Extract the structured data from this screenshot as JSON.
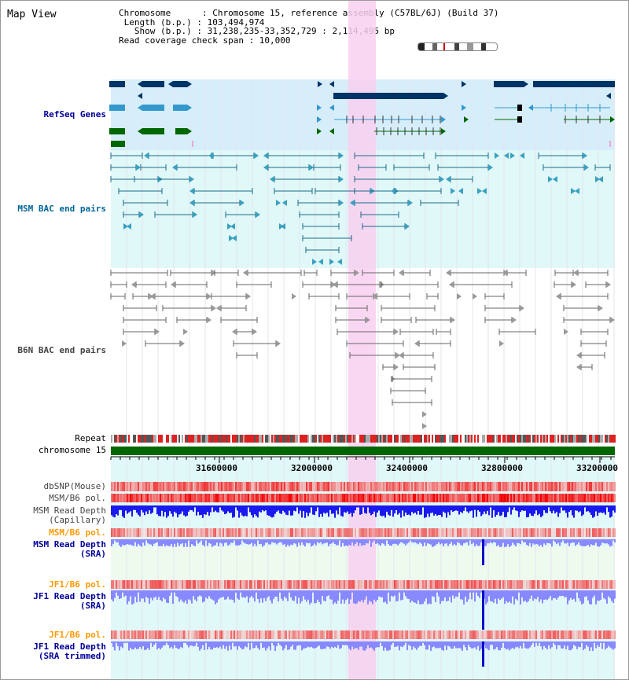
{
  "panel_title": "Map View",
  "info": {
    "chromosome": "Chromosome      : Chromosome 15, reference assembly (C57BL/6J) (Build 37)",
    "length": " Length (b.p.) : 103,494,974",
    "show": "   Show (b.p.) : 31,238,235-33,352,729 : 2,114,495 bp",
    "coverage": "Read coverage check span : 10,000"
  },
  "tracks": {
    "refseq": "RefSeq Genes",
    "msm_bac": "MSM BAC end pairs",
    "b6n_bac": "B6N BAC end pairs",
    "repeat": "Repeat",
    "chromosome": "chromosome 15",
    "dbsnp": "dbSNP(Mouse)",
    "msm_b6_pol": "MSM/B6 pol.",
    "msm_depth_cap_1": "MSM Read Depth",
    "msm_depth_cap_2": "(Capillary)",
    "msm_b6_pol_2": "MSM/B6 pol.",
    "msm_depth_sra_1": "MSM Read Depth",
    "msm_depth_sra_2": "(SRA)",
    "jf1_b6_pol": "JF1/B6 pol.",
    "jf1_depth_sra_1": "JF1 Read Depth",
    "jf1_depth_sra_2": "(SRA)",
    "jf1_b6_pol_2": "JF1/B6 pol.",
    "jf1_depth_trim_1": "JF1 Read Depth",
    "jf1_depth_trim_2": "(SRA trimmed)"
  },
  "ruler": [
    "31600000",
    "32000000",
    "32400000",
    "32800000",
    "33200000"
  ],
  "colors": {
    "refseq_label": "#000099",
    "msm_label": "#006699",
    "b6n_label": "#444444",
    "orange_label": "#ff9900",
    "blue_label": "#000099",
    "highlight": "#f8d0f0",
    "refseq_bg": "#d6eefa",
    "msm_bg": "#e0f8f8",
    "gene_navy": "#003366",
    "gene_teal": "#3399cc",
    "gene_green": "#006600",
    "depth_blue": "#0000dd",
    "depth_light": "#8888ff"
  }
}
